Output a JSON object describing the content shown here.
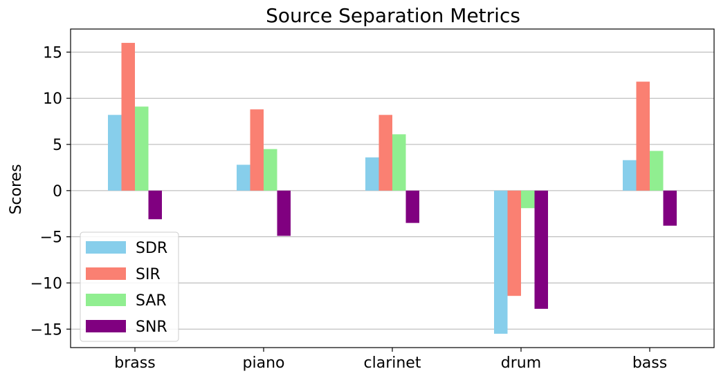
{
  "chart_data": {
    "type": "bar",
    "title": "Source Separation Metrics",
    "xlabel": "",
    "ylabel": "Scores",
    "ylim": [
      -17,
      17.5
    ],
    "yticks": [
      15,
      10,
      5,
      0,
      -5,
      -10,
      -15
    ],
    "ytick_labels": [
      "15",
      "10",
      "5",
      "0",
      "−5",
      "−10",
      "−15"
    ],
    "grid": "horizontal",
    "legend_position": "lower-left",
    "categories": [
      "brass",
      "piano",
      "clarinet",
      "drum",
      "bass"
    ],
    "series": [
      {
        "name": "SDR",
        "color": "#87CEEB",
        "values": [
          8.2,
          2.8,
          3.6,
          -15.5,
          3.3
        ]
      },
      {
        "name": "SIR",
        "color": "#FA8072",
        "values": [
          16.0,
          8.8,
          8.2,
          -11.4,
          11.8
        ]
      },
      {
        "name": "SAR",
        "color": "#90EE90",
        "values": [
          9.1,
          4.5,
          6.1,
          -1.9,
          4.3
        ]
      },
      {
        "name": "SNR",
        "color": "#800080",
        "values": [
          -3.1,
          -4.9,
          -3.5,
          -12.8,
          -3.8
        ]
      }
    ]
  }
}
